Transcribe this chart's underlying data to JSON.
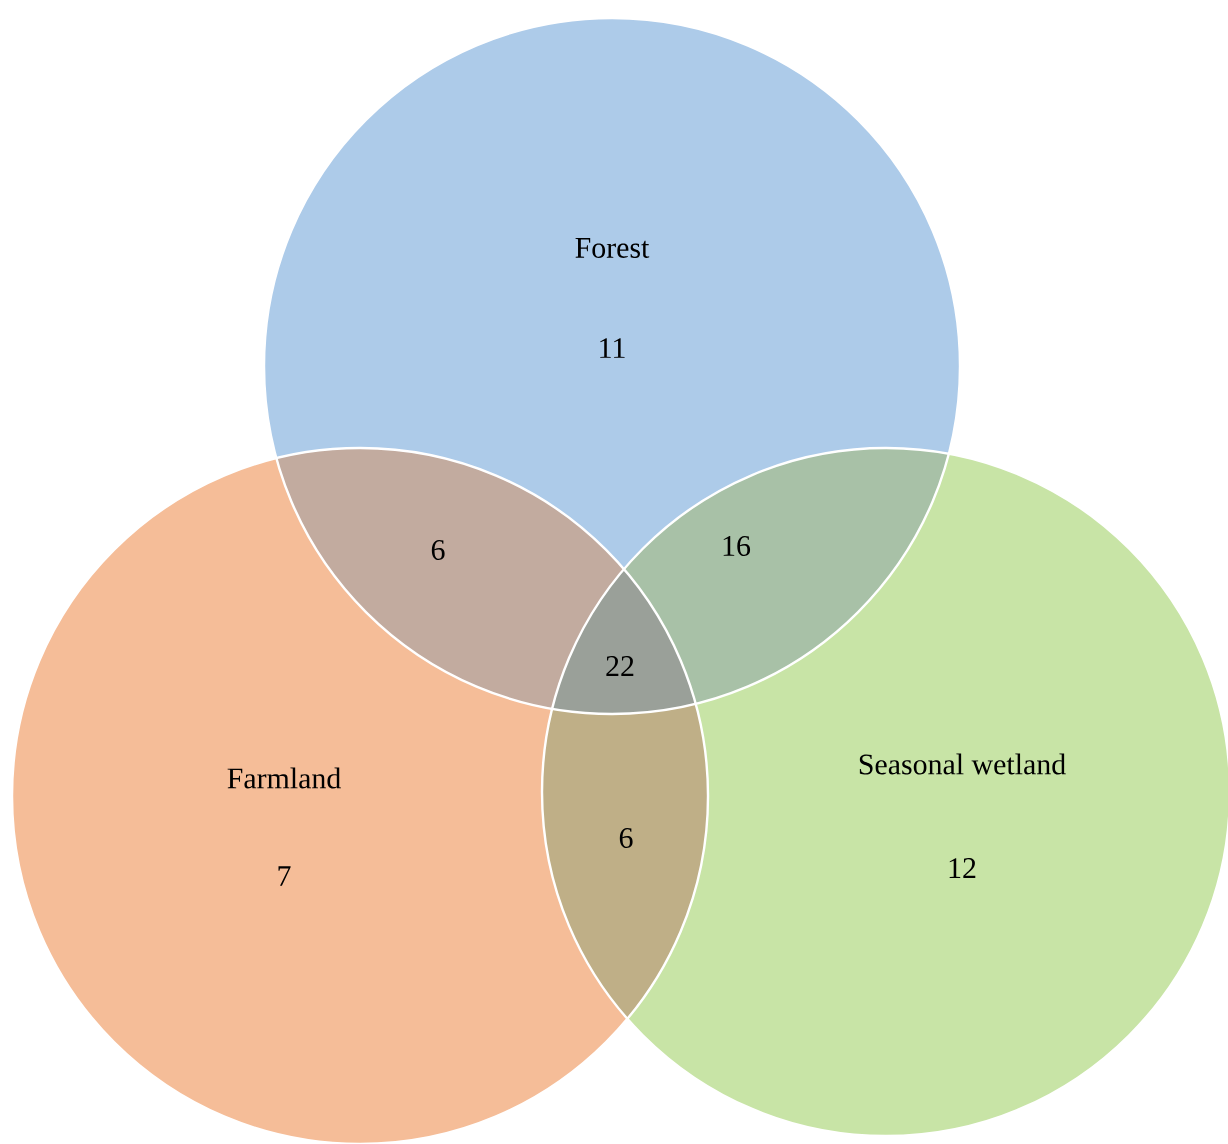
{
  "chart_data": {
    "type": "other",
    "categories": [
      "Forest",
      "Farmland",
      "Seasonal wetland"
    ],
    "values": [
      11,
      7,
      12
    ],
    "data_labels": true,
    "colors": [
      "#adcbe9",
      "#f5bd98",
      "#c8e4a6"
    ],
    "annotations": [
      "6",
      "16",
      "22",
      "6"
    ]
  }
}
